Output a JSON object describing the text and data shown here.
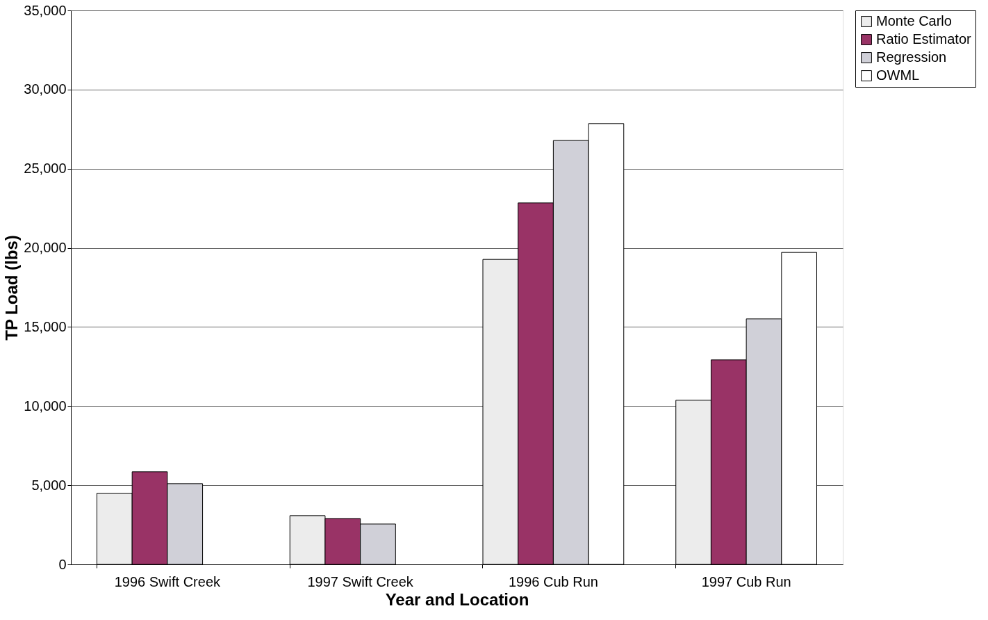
{
  "chart_data": {
    "type": "bar",
    "xlabel": "Year and Location",
    "ylabel": "TP Load (lbs)",
    "categories": [
      "1996 Swift Creek",
      "1997 Swift Creek",
      "1996 Cub Run",
      "1997 Cub Run"
    ],
    "series": [
      {
        "name": "Monte Carlo",
        "color": "#ececec",
        "values": [
          4500,
          3080,
          19270,
          10370
        ]
      },
      {
        "name": "Ratio Estimator",
        "color": "#993366",
        "values": [
          5850,
          2900,
          22840,
          12920
        ]
      },
      {
        "name": "Regression",
        "color": "#d0d0d8",
        "values": [
          5100,
          2550,
          26780,
          15510
        ]
      },
      {
        "name": "OWML",
        "color": "#ffffff",
        "values": [
          null,
          null,
          27850,
          19710
        ]
      }
    ],
    "ylim": [
      0,
      35000
    ],
    "yticks": [
      0,
      {
        "value": 5000,
        "label": "5,000"
      },
      {
        "value": 10000,
        "label": "10,000"
      },
      {
        "value": 15000,
        "label": "15,000"
      },
      {
        "value": 20000,
        "label": "20,000"
      },
      {
        "value": 25000,
        "label": "25,000"
      },
      {
        "value": 30000,
        "label": "30,000"
      },
      {
        "value": 35000,
        "label": "35,000"
      }
    ],
    "grid": "y",
    "legend": "right"
  }
}
